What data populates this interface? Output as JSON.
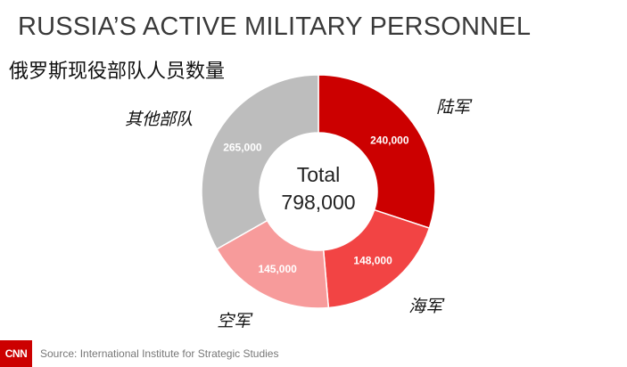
{
  "header": {
    "title": "RUSSIA’S ACTIVE MILITARY PERSONNEL",
    "subtitle": "俄罗斯现役部队人员数量"
  },
  "chart_data": {
    "type": "pie",
    "donut": true,
    "center_label": "Total",
    "center_value": "798,000",
    "series": [
      {
        "name": "陆军",
        "value": 240000,
        "value_label": "240,000",
        "color": "#cc0000"
      },
      {
        "name": "海军",
        "value": 148000,
        "value_label": "148,000",
        "color": "#f24444"
      },
      {
        "name": "空军",
        "value": 145000,
        "value_label": "145,000",
        "color": "#f79b9b"
      },
      {
        "name": "其他部队",
        "value": 265000,
        "value_label": "265,000",
        "color": "#bdbdbd"
      }
    ]
  },
  "footer": {
    "logo": "CNN",
    "source": "Source: International Institute for Strategic Studies"
  }
}
